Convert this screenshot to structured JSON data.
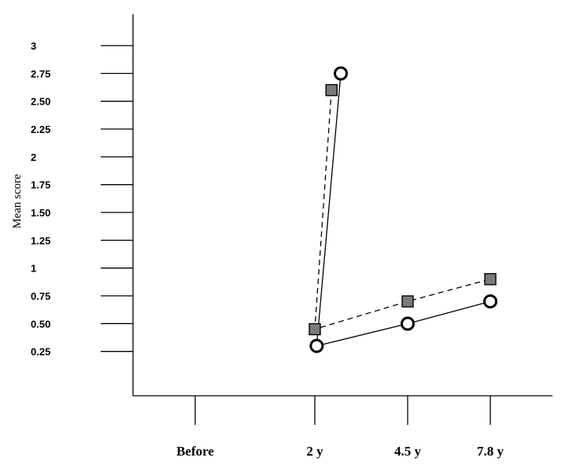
{
  "chart_data": {
    "type": "line",
    "title": "",
    "xlabel": "",
    "ylabel": "Mean score",
    "categories": [
      "Before",
      "2 y",
      "4.5 y",
      "7.8 y"
    ],
    "y_ticks": [
      "0.25",
      "0.50",
      "0.75",
      "1",
      "1.25",
      "1.50",
      "1.75",
      "2",
      "2.25",
      "2.50",
      "2.75",
      "3"
    ],
    "ylim": [
      0,
      3
    ],
    "grid": false,
    "legend": "none",
    "series": [
      {
        "marker": "filled-square",
        "line_style": "dashed",
        "color": "#7a7a7a",
        "x": [
          2.45,
          2,
          4.5,
          7.8
        ],
        "values": [
          2.6,
          0.45,
          0.7,
          0.9
        ]
      },
      {
        "marker": "open-circle",
        "line_style": "solid",
        "color": "#000000",
        "x": [
          2.7,
          2.05,
          4.5,
          7.8
        ],
        "values": [
          2.75,
          0.3,
          0.5,
          0.7
        ]
      }
    ]
  }
}
